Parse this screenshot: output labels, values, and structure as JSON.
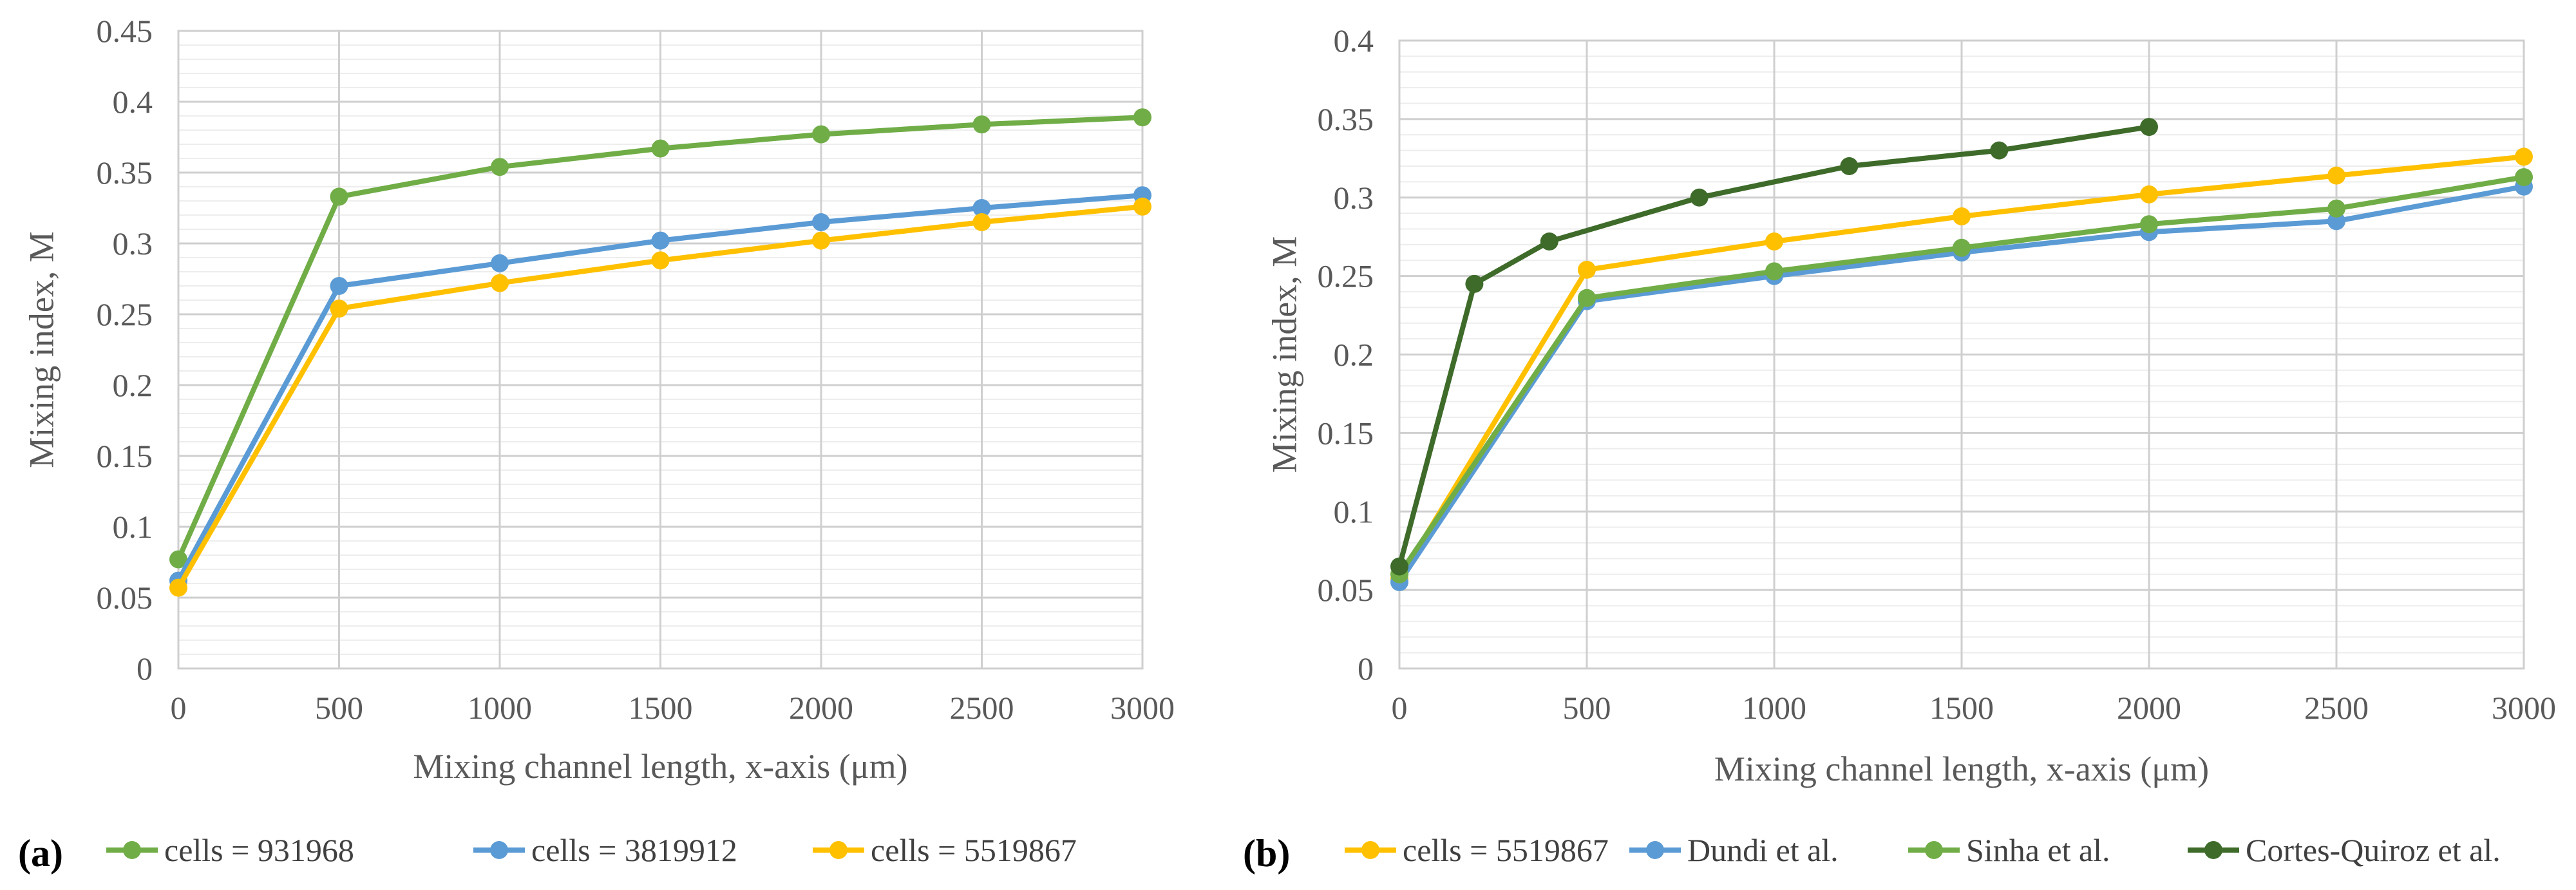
{
  "chart_data": [
    {
      "type": "line",
      "panel_label": "(a)",
      "xlabel": "Mixing channel length, x-axis (μm)",
      "ylabel": "Mixing index, M",
      "xlim": [
        0,
        3000
      ],
      "ylim": [
        0,
        0.45
      ],
      "xticks": [
        0,
        500,
        1000,
        1500,
        2000,
        2500,
        3000
      ],
      "yticks": [
        0,
        0.05,
        0.1,
        0.15,
        0.2,
        0.25,
        0.3,
        0.35,
        0.4,
        0.45
      ],
      "yminor_step": 0.01,
      "grid": true,
      "legend_position": "bottom",
      "series": [
        {
          "name": "cells = 931968",
          "color": "#70AD47",
          "x": [
            0,
            500,
            1000,
            1500,
            2000,
            2500,
            3000
          ],
          "values": [
            0.077,
            0.333,
            0.354,
            0.367,
            0.377,
            0.384,
            0.389
          ]
        },
        {
          "name": "cells = 3819912",
          "color": "#5B9BD5",
          "x": [
            0,
            500,
            1000,
            1500,
            2000,
            2500,
            3000
          ],
          "values": [
            0.062,
            0.27,
            0.286,
            0.302,
            0.315,
            0.325,
            0.334
          ]
        },
        {
          "name": "cells = 5519867",
          "color": "#FFC000",
          "x": [
            0,
            500,
            1000,
            1500,
            2000,
            2500,
            3000
          ],
          "values": [
            0.057,
            0.254,
            0.272,
            0.288,
            0.302,
            0.315,
            0.326
          ]
        }
      ]
    },
    {
      "type": "line",
      "panel_label": "(b)",
      "xlabel": "Mixing channel length, x-axis (μm)",
      "ylabel": "Mixing index, M",
      "xlim": [
        0,
        3000
      ],
      "ylim": [
        0,
        0.4
      ],
      "xticks": [
        0,
        500,
        1000,
        1500,
        2000,
        2500,
        3000
      ],
      "yticks": [
        0,
        0.05,
        0.1,
        0.15,
        0.2,
        0.25,
        0.3,
        0.35,
        0.4
      ],
      "yminor_step": 0.01,
      "grid": true,
      "legend_position": "bottom",
      "series": [
        {
          "name": "cells = 5519867",
          "color": "#FFC000",
          "x": [
            0,
            500,
            1000,
            1500,
            2000,
            2500,
            3000
          ],
          "values": [
            0.057,
            0.254,
            0.272,
            0.288,
            0.302,
            0.314,
            0.326
          ]
        },
        {
          "name": "Dundi et al.",
          "color": "#5B9BD5",
          "x": [
            0,
            500,
            1000,
            1500,
            2000,
            2500,
            3000
          ],
          "values": [
            0.055,
            0.234,
            0.25,
            0.265,
            0.278,
            0.285,
            0.307
          ]
        },
        {
          "name": "Sinha et al.",
          "color": "#70AD47",
          "x": [
            0,
            500,
            1000,
            1500,
            2000,
            2500,
            3000
          ],
          "values": [
            0.06,
            0.236,
            0.253,
            0.268,
            0.283,
            0.293,
            0.313
          ]
        },
        {
          "name": "Cortes-Quiroz et al.",
          "color": "#3E6B2A",
          "x": [
            0,
            200,
            400,
            800,
            1200,
            1600,
            2000
          ],
          "values": [
            0.065,
            0.245,
            0.272,
            0.3,
            0.32,
            0.33,
            0.345
          ]
        }
      ]
    }
  ]
}
